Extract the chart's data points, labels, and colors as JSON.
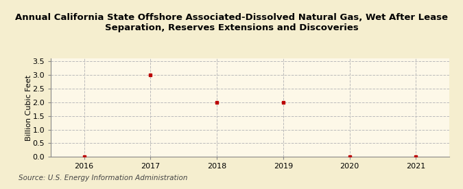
{
  "title_line1": "Annual California State Offshore Associated-Dissolved Natural Gas, Wet After Lease",
  "title_line2": "Separation, Reserves Extensions and Discoveries",
  "ylabel": "Billion Cubic Feet",
  "source": "Source: U.S. Energy Information Administration",
  "x_values": [
    2016,
    2017,
    2018,
    2019,
    2020,
    2021
  ],
  "y_values": [
    0.0,
    3.0,
    2.0,
    2.0,
    0.0,
    0.0
  ],
  "xlim": [
    2015.5,
    2021.5
  ],
  "ylim": [
    0.0,
    3.6
  ],
  "yticks": [
    0.0,
    0.5,
    1.0,
    1.5,
    2.0,
    2.5,
    3.0,
    3.5
  ],
  "xticks": [
    2016,
    2017,
    2018,
    2019,
    2020,
    2021
  ],
  "background_color": "#f5eecf",
  "plot_bg_color": "#fdf8e8",
  "marker_color": "#bb0000",
  "marker_style": "s",
  "marker_size": 3.5,
  "grid_color": "#bbbbbb",
  "grid_linestyle": "--",
  "title_fontsize": 9.5,
  "ylabel_fontsize": 8,
  "tick_fontsize": 8,
  "source_fontsize": 7.5
}
